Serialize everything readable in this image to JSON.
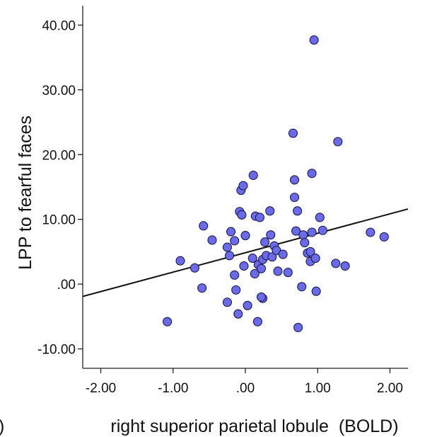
{
  "chart_data": {
    "type": "scatter",
    "title": "",
    "xlabel": "right superior parietal lobule  (BOLD)",
    "ylabel": "LPP to fearful faces",
    "xlim": [
      -2.25,
      2.25
    ],
    "ylim": [
      -13,
      43
    ],
    "x_ticks": [
      -2,
      -1,
      0,
      1,
      2
    ],
    "x_tick_labels": [
      "-2.00",
      "-1.00",
      ".00",
      "1.00",
      "2.00"
    ],
    "y_ticks": [
      -10,
      0,
      10,
      20,
      30,
      40
    ],
    "y_tick_labels": [
      "-10.00",
      ".00",
      "10.00",
      "20.00",
      "30.00",
      "40.00"
    ],
    "grid": false,
    "fit_line": {
      "x": [
        -2.25,
        2.25
      ],
      "y": [
        -1.9,
        11.6
      ]
    },
    "edge_fragment": ")",
    "colors": {
      "point_fill": "#6b6bea",
      "point_stroke": "#1a1a4a",
      "line": "#111111"
    },
    "points": [
      [
        -1.08,
        -5.8
      ],
      [
        -0.9,
        3.6
      ],
      [
        -0.7,
        2.5
      ],
      [
        -0.6,
        -0.6
      ],
      [
        -0.58,
        9.0
      ],
      [
        -0.46,
        6.8
      ],
      [
        -0.25,
        5.7
      ],
      [
        -0.25,
        -2.8
      ],
      [
        -0.22,
        4.4
      ],
      [
        -0.2,
        8.1
      ],
      [
        -0.15,
        1.4
      ],
      [
        -0.15,
        6.7
      ],
      [
        -0.13,
        -0.9
      ],
      [
        -0.1,
        -4.6
      ],
      [
        -0.08,
        11.2
      ],
      [
        -0.06,
        14.5
      ],
      [
        -0.05,
        10.7
      ],
      [
        -0.03,
        15.2
      ],
      [
        -0.02,
        2.8
      ],
      [
        0.0,
        7.5
      ],
      [
        0.03,
        -3.3
      ],
      [
        0.1,
        4.0
      ],
      [
        0.11,
        16.8
      ],
      [
        0.13,
        1.6
      ],
      [
        0.14,
        10.5
      ],
      [
        0.17,
        -5.8
      ],
      [
        0.18,
        3.0
      ],
      [
        0.2,
        10.3
      ],
      [
        0.22,
        2.4
      ],
      [
        0.24,
        3.8
      ],
      [
        0.24,
        -2.2
      ],
      [
        0.22,
        -2.0
      ],
      [
        0.27,
        6.5
      ],
      [
        0.29,
        4.4
      ],
      [
        0.34,
        11.3
      ],
      [
        0.35,
        7.6
      ],
      [
        0.37,
        4.2
      ],
      [
        0.4,
        5.9
      ],
      [
        0.43,
        5.2
      ],
      [
        0.45,
        2.0
      ],
      [
        0.52,
        4.6
      ],
      [
        0.59,
        1.8
      ],
      [
        0.66,
        23.3
      ],
      [
        0.68,
        16.1
      ],
      [
        0.68,
        13.4
      ],
      [
        0.7,
        8.2
      ],
      [
        0.73,
        -6.7
      ],
      [
        0.72,
        11.3
      ],
      [
        0.78,
        -0.4
      ],
      [
        0.8,
        7.6
      ],
      [
        0.82,
        6.4
      ],
      [
        0.86,
        4.8
      ],
      [
        0.9,
        5.0
      ],
      [
        0.9,
        3.5
      ],
      [
        0.92,
        17.1
      ],
      [
        0.92,
        8.0
      ],
      [
        0.95,
        37.7
      ],
      [
        0.97,
        4.0
      ],
      [
        0.98,
        -1.1
      ],
      [
        1.03,
        10.3
      ],
      [
        1.07,
        8.3
      ],
      [
        1.25,
        3.2
      ],
      [
        1.28,
        22.0
      ],
      [
        1.38,
        2.8
      ],
      [
        1.73,
        8.0
      ],
      [
        1.92,
        7.3
      ]
    ]
  }
}
